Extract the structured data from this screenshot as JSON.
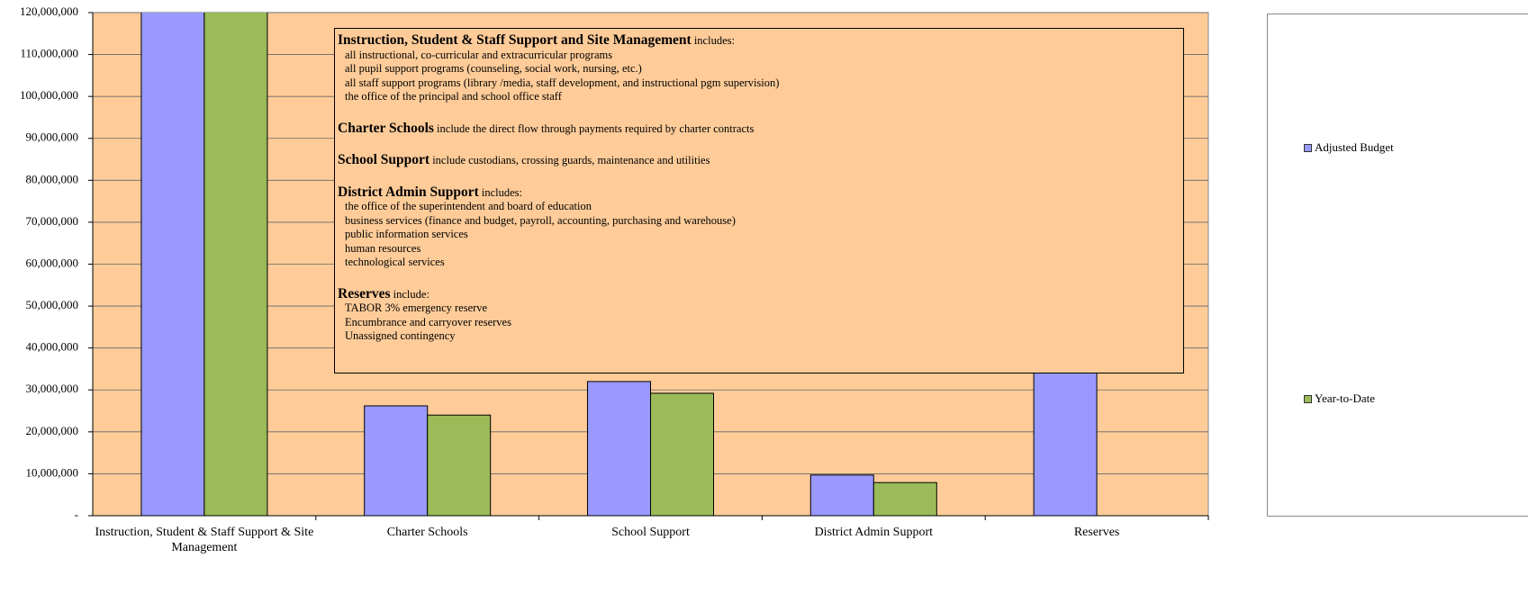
{
  "chart_data": {
    "type": "bar",
    "categories": [
      "Instruction, Student & Staff Support & Site Management",
      "Charter Schools",
      "School Support",
      "District Admin Support",
      "Reserves"
    ],
    "series": [
      {
        "name": "Adjusted Budget",
        "color": "#9999ff",
        "values": [
          125000000,
          26200000,
          32000000,
          9700000,
          40000000
        ]
      },
      {
        "name": "Year-to-Date",
        "color": "#9bbb59",
        "values": [
          125000000,
          24000000,
          29200000,
          7900000,
          null
        ]
      }
    ],
    "ylim": [
      0,
      120000000
    ],
    "yticks": [
      {
        "value": 0,
        "label": "-"
      },
      {
        "value": 10000000,
        "label": "10,000,000"
      },
      {
        "value": 20000000,
        "label": "20,000,000"
      },
      {
        "value": 30000000,
        "label": "30,000,000"
      },
      {
        "value": 40000000,
        "label": "40,000,000"
      },
      {
        "value": 50000000,
        "label": "50,000,000"
      },
      {
        "value": 60000000,
        "label": "60,000,000"
      },
      {
        "value": 70000000,
        "label": "70,000,000"
      },
      {
        "value": 80000000,
        "label": "80,000,000"
      },
      {
        "value": 90000000,
        "label": "90,000,000"
      },
      {
        "value": 100000000,
        "label": "100,000,000"
      },
      {
        "value": 110000000,
        "label": "110,000,000"
      },
      {
        "value": 120000000,
        "label": "120,000,000"
      }
    ],
    "grid": true,
    "legend": "right",
    "annotation": [
      {
        "heading": "Instruction, Student & Staff Support and Site Management",
        "text": "includes:",
        "lines": [
          "all instructional, co-curricular and extracurricular programs",
          "all pupil support programs (counseling, social work, nursing, etc.)",
          "all staff support programs (library /media, staff development, and instructional pgm supervision)",
          "the office of the principal and school office staff"
        ]
      },
      {
        "heading": "Charter Schools",
        "text": "include the direct flow through payments required by charter contracts",
        "lines": []
      },
      {
        "heading": "School Support",
        "text": "include custodians, crossing guards, maintenance and utilities",
        "lines": []
      },
      {
        "heading": "District Admin Support",
        "text": "includes:",
        "lines": [
          "the office of the superintendent and board of education",
          "business services (finance and budget, payroll, accounting, purchasing and warehouse)",
          "public information services",
          "human resources",
          "technological services"
        ]
      },
      {
        "heading": "Reserves",
        "text": "include:",
        "lines": [
          "TABOR 3% emergency reserve",
          "Encumbrance and carryover reserves",
          "Unassigned contingency"
        ]
      }
    ]
  }
}
